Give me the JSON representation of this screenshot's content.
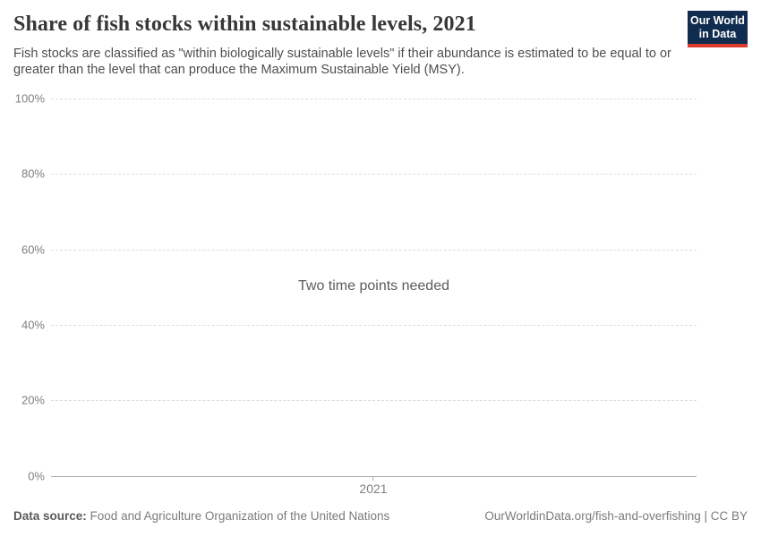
{
  "header": {
    "title": "Share of fish stocks within sustainable levels, 2021",
    "subtitle": "Fish stocks are classified as \"within biologically sustainable levels\" if their abundance is estimated to be equal to or greater than the level that can produce the Maximum Sustainable Yield (MSY).",
    "logo": {
      "line1": "Our World",
      "line2": "in Data"
    }
  },
  "chart_data": {
    "type": "line",
    "title": "Share of fish stocks within sustainable levels, 2021",
    "message": "Two time points needed",
    "series": [],
    "categories": [],
    "x_tick_labels": [
      "2021"
    ],
    "y_tick_labels": [
      "0%",
      "20%",
      "40%",
      "60%",
      "80%",
      "100%"
    ],
    "y_tick_values": [
      0,
      20,
      40,
      60,
      80,
      100
    ],
    "ylim": [
      0,
      100
    ],
    "grid": true,
    "legend": "none"
  },
  "footer": {
    "data_source_label": "Data source:",
    "data_source_value": "Food and Agriculture Organization of the United Nations",
    "credit": "OurWorldinData.org/fish-and-overfishing | CC BY"
  },
  "colors": {
    "background": "#ffffff",
    "title": "#373737",
    "subtitle": "#4e4e4e",
    "tick_label": "#7e7e7e",
    "gridline": "#dcdcdc",
    "axis_line": "#a8a8a8",
    "message": "#5c5c5c",
    "footer_text": "#7b7b7b",
    "logo_bg": "#102d4f",
    "logo_accent": "#dc3a2f"
  }
}
